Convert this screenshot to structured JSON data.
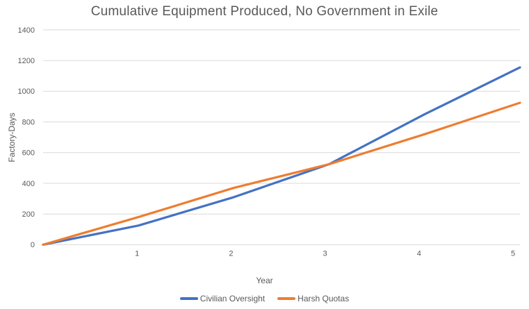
{
  "chart_data": {
    "type": "line",
    "title": "Cumulative Equipment Produced, No Government in Exile",
    "xlabel": "Year",
    "ylabel": "Factory-Days",
    "x": [
      0,
      1,
      2,
      3,
      4,
      5
    ],
    "series": [
      {
        "name": "Civilian Oversight",
        "color": "#4472C4",
        "values": [
          0,
          125,
          310,
          525,
          850,
          1155
        ]
      },
      {
        "name": "Harsh Quotas",
        "color": "#ED7D31",
        "values": [
          0,
          180,
          370,
          525,
          720,
          925
        ]
      }
    ],
    "ylim": [
      0,
      1400
    ],
    "y_ticks": [
      0,
      200,
      400,
      600,
      800,
      1000,
      1200,
      1400
    ],
    "x_ticks": [
      1,
      2,
      3,
      4,
      5
    ],
    "grid": "horizontal",
    "legend_position": "bottom"
  },
  "colors": {
    "grid": "#D9D9D9",
    "text": "#595959",
    "background": "#FFFFFF",
    "series_blue": "#4472C4",
    "series_orange": "#ED7D31"
  }
}
